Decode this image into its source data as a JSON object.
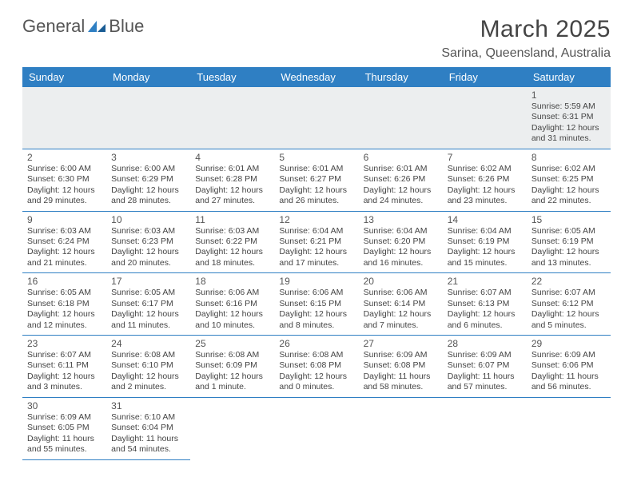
{
  "colors": {
    "header_bg": "#2f7fc3",
    "header_fg": "#ffffff",
    "cell_border": "#2f7fc3",
    "gray_bg": "#eceeef",
    "text": "#444444",
    "logo_gray": "#555555",
    "logo_blue": "#2f7fc3"
  },
  "logo": {
    "word1": "General",
    "word2": "Blue"
  },
  "title": "March 2025",
  "location": "Sarina, Queensland, Australia",
  "weekdays": [
    "Sunday",
    "Monday",
    "Tuesday",
    "Wednesday",
    "Thursday",
    "Friday",
    "Saturday"
  ],
  "weeks": [
    [
      null,
      null,
      null,
      null,
      null,
      null,
      {
        "n": "1",
        "sr": "Sunrise: 5:59 AM",
        "ss": "Sunset: 6:31 PM",
        "dl": "Daylight: 12 hours and 31 minutes."
      }
    ],
    [
      {
        "n": "2",
        "sr": "Sunrise: 6:00 AM",
        "ss": "Sunset: 6:30 PM",
        "dl": "Daylight: 12 hours and 29 minutes."
      },
      {
        "n": "3",
        "sr": "Sunrise: 6:00 AM",
        "ss": "Sunset: 6:29 PM",
        "dl": "Daylight: 12 hours and 28 minutes."
      },
      {
        "n": "4",
        "sr": "Sunrise: 6:01 AM",
        "ss": "Sunset: 6:28 PM",
        "dl": "Daylight: 12 hours and 27 minutes."
      },
      {
        "n": "5",
        "sr": "Sunrise: 6:01 AM",
        "ss": "Sunset: 6:27 PM",
        "dl": "Daylight: 12 hours and 26 minutes."
      },
      {
        "n": "6",
        "sr": "Sunrise: 6:01 AM",
        "ss": "Sunset: 6:26 PM",
        "dl": "Daylight: 12 hours and 24 minutes."
      },
      {
        "n": "7",
        "sr": "Sunrise: 6:02 AM",
        "ss": "Sunset: 6:26 PM",
        "dl": "Daylight: 12 hours and 23 minutes."
      },
      {
        "n": "8",
        "sr": "Sunrise: 6:02 AM",
        "ss": "Sunset: 6:25 PM",
        "dl": "Daylight: 12 hours and 22 minutes."
      }
    ],
    [
      {
        "n": "9",
        "sr": "Sunrise: 6:03 AM",
        "ss": "Sunset: 6:24 PM",
        "dl": "Daylight: 12 hours and 21 minutes."
      },
      {
        "n": "10",
        "sr": "Sunrise: 6:03 AM",
        "ss": "Sunset: 6:23 PM",
        "dl": "Daylight: 12 hours and 20 minutes."
      },
      {
        "n": "11",
        "sr": "Sunrise: 6:03 AM",
        "ss": "Sunset: 6:22 PM",
        "dl": "Daylight: 12 hours and 18 minutes."
      },
      {
        "n": "12",
        "sr": "Sunrise: 6:04 AM",
        "ss": "Sunset: 6:21 PM",
        "dl": "Daylight: 12 hours and 17 minutes."
      },
      {
        "n": "13",
        "sr": "Sunrise: 6:04 AM",
        "ss": "Sunset: 6:20 PM",
        "dl": "Daylight: 12 hours and 16 minutes."
      },
      {
        "n": "14",
        "sr": "Sunrise: 6:04 AM",
        "ss": "Sunset: 6:19 PM",
        "dl": "Daylight: 12 hours and 15 minutes."
      },
      {
        "n": "15",
        "sr": "Sunrise: 6:05 AM",
        "ss": "Sunset: 6:19 PM",
        "dl": "Daylight: 12 hours and 13 minutes."
      }
    ],
    [
      {
        "n": "16",
        "sr": "Sunrise: 6:05 AM",
        "ss": "Sunset: 6:18 PM",
        "dl": "Daylight: 12 hours and 12 minutes."
      },
      {
        "n": "17",
        "sr": "Sunrise: 6:05 AM",
        "ss": "Sunset: 6:17 PM",
        "dl": "Daylight: 12 hours and 11 minutes."
      },
      {
        "n": "18",
        "sr": "Sunrise: 6:06 AM",
        "ss": "Sunset: 6:16 PM",
        "dl": "Daylight: 12 hours and 10 minutes."
      },
      {
        "n": "19",
        "sr": "Sunrise: 6:06 AM",
        "ss": "Sunset: 6:15 PM",
        "dl": "Daylight: 12 hours and 8 minutes."
      },
      {
        "n": "20",
        "sr": "Sunrise: 6:06 AM",
        "ss": "Sunset: 6:14 PM",
        "dl": "Daylight: 12 hours and 7 minutes."
      },
      {
        "n": "21",
        "sr": "Sunrise: 6:07 AM",
        "ss": "Sunset: 6:13 PM",
        "dl": "Daylight: 12 hours and 6 minutes."
      },
      {
        "n": "22",
        "sr": "Sunrise: 6:07 AM",
        "ss": "Sunset: 6:12 PM",
        "dl": "Daylight: 12 hours and 5 minutes."
      }
    ],
    [
      {
        "n": "23",
        "sr": "Sunrise: 6:07 AM",
        "ss": "Sunset: 6:11 PM",
        "dl": "Daylight: 12 hours and 3 minutes."
      },
      {
        "n": "24",
        "sr": "Sunrise: 6:08 AM",
        "ss": "Sunset: 6:10 PM",
        "dl": "Daylight: 12 hours and 2 minutes."
      },
      {
        "n": "25",
        "sr": "Sunrise: 6:08 AM",
        "ss": "Sunset: 6:09 PM",
        "dl": "Daylight: 12 hours and 1 minute."
      },
      {
        "n": "26",
        "sr": "Sunrise: 6:08 AM",
        "ss": "Sunset: 6:08 PM",
        "dl": "Daylight: 12 hours and 0 minutes."
      },
      {
        "n": "27",
        "sr": "Sunrise: 6:09 AM",
        "ss": "Sunset: 6:08 PM",
        "dl": "Daylight: 11 hours and 58 minutes."
      },
      {
        "n": "28",
        "sr": "Sunrise: 6:09 AM",
        "ss": "Sunset: 6:07 PM",
        "dl": "Daylight: 11 hours and 57 minutes."
      },
      {
        "n": "29",
        "sr": "Sunrise: 6:09 AM",
        "ss": "Sunset: 6:06 PM",
        "dl": "Daylight: 11 hours and 56 minutes."
      }
    ],
    [
      {
        "n": "30",
        "sr": "Sunrise: 6:09 AM",
        "ss": "Sunset: 6:05 PM",
        "dl": "Daylight: 11 hours and 55 minutes."
      },
      {
        "n": "31",
        "sr": "Sunrise: 6:10 AM",
        "ss": "Sunset: 6:04 PM",
        "dl": "Daylight: 11 hours and 54 minutes."
      },
      null,
      null,
      null,
      null,
      null
    ]
  ]
}
